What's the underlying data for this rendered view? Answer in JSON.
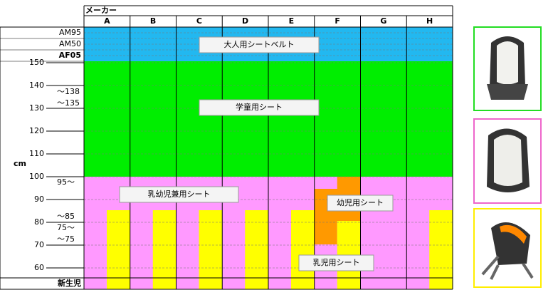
{
  "header": {
    "maker": "メーカー",
    "unit": "cm",
    "newborn": "新生児"
  },
  "columns": [
    "A",
    "B",
    "C",
    "D",
    "E",
    "F",
    "G",
    "H"
  ],
  "rows": [
    "AM95",
    "AM50",
    "AF05"
  ],
  "scale": [
    150,
    140,
    130,
    120,
    110,
    100,
    90,
    80,
    70,
    60
  ],
  "range_labels": [
    "〜138",
    "〜135",
    "95〜",
    "〜85",
    "75〜",
    "〜75"
  ],
  "regions": {
    "adult": "大人用シートベルト",
    "junior": "学童用シート",
    "combo": "乳幼児兼用シート",
    "child": "幼児用シート",
    "infant": "乳児用シート"
  }
}
